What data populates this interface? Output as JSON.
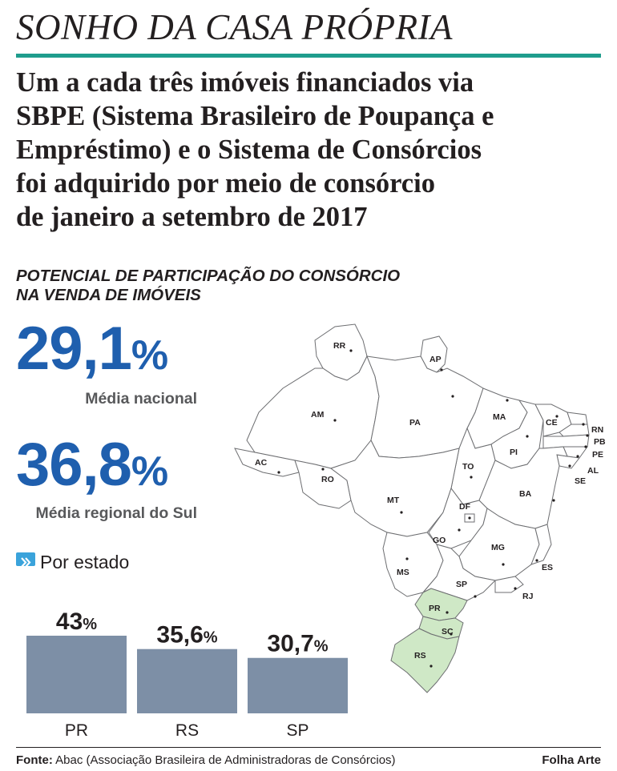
{
  "header": {
    "title": "SONHO DA CASA PRÓPRIA",
    "lead_lines": [
      "Um a cada três imóveis financiados via",
      "SBPE (Sistema Brasileiro de Poupança e",
      "Empréstimo) e o Sistema de Consórcios",
      "foi adquirido por meio de consórcio",
      "de janeiro a setembro de 2017"
    ]
  },
  "section": {
    "title_lines": [
      "POTENCIAL DE PARTICIPAÇÃO DO CONSÓRCIO",
      "NA VENDA DE IMÓVEIS"
    ]
  },
  "stats": {
    "national": {
      "value": "29,1",
      "unit": "%",
      "label": "Média nacional"
    },
    "south": {
      "value": "36,8",
      "unit": "%",
      "label": "Média regional do Sul"
    }
  },
  "by_state_label": "Por estado",
  "chart_data": {
    "type": "bar",
    "categories": [
      "PR",
      "RS",
      "SP"
    ],
    "values": [
      43,
      35.6,
      30.7
    ],
    "value_labels": [
      "43",
      "35,6",
      "30,7"
    ],
    "unit": "%",
    "title": "",
    "xlabel": "",
    "ylabel": "",
    "ylim": [
      0,
      43
    ],
    "grid": false,
    "bar_color": "#7d8fa6"
  },
  "map": {
    "state_labels": [
      "RR",
      "AP",
      "AM",
      "PA",
      "MA",
      "CE",
      "RN",
      "PB",
      "PE",
      "AL",
      "SE",
      "PI",
      "AC",
      "RO",
      "TO",
      "BA",
      "MT",
      "DF",
      "GO",
      "MG",
      "MS",
      "ES",
      "SP",
      "RJ",
      "PR",
      "SC",
      "RS"
    ],
    "highlighted": [
      "PR",
      "SC",
      "RS"
    ],
    "highlight_color": "#cfe8c6"
  },
  "footer": {
    "source_label": "Fonte:",
    "source_text": "Abac (Associação Brasileira de Administradoras de Consórcios)",
    "credit": "Folha Arte"
  }
}
